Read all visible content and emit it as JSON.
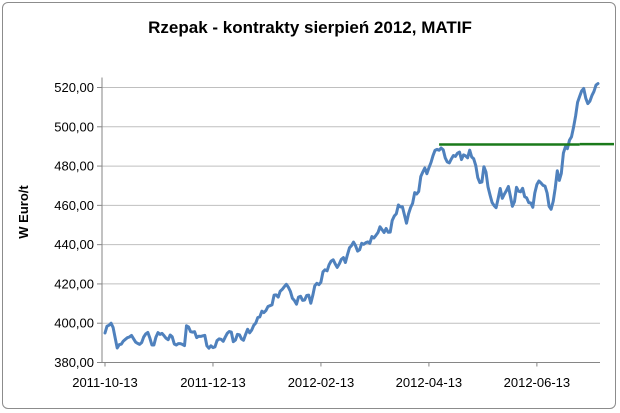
{
  "chart_data": {
    "type": "line",
    "title": "Rzepak - kontrakty sierpień 2012, MATIF",
    "xlabel": "",
    "ylabel": "W Euro/t",
    "ylim": [
      380,
      530
    ],
    "y_ticks": [
      380,
      400,
      420,
      440,
      460,
      480,
      500,
      520
    ],
    "y_tick_labels": [
      "380,00",
      "400,00",
      "420,00",
      "440,00",
      "460,00",
      "480,00",
      "500,00",
      "520,00"
    ],
    "x_tick_labels": [
      "2011-10-13",
      "2011-12-13",
      "2012-02-13",
      "2012-04-13",
      "2012-06-13"
    ],
    "grid": "horizontal",
    "colors": {
      "series": "#4f81bd",
      "reference": "#1a7a1a",
      "grid": "#bfbfbf",
      "axis": "#868686"
    },
    "series": [
      {
        "values": [
          395.0,
          398.5,
          399.0,
          400.0,
          397.8,
          392.4,
          387.4,
          389.1,
          389.3,
          390.9,
          391.8,
          392.6,
          393.0,
          393.8,
          392.1,
          390.4,
          389.7,
          389.2,
          390.2,
          393.0,
          394.5,
          395.3,
          392.5,
          388.9,
          388.9,
          392.9,
          395.2,
          394.3,
          394.8,
          393.6,
          392.3,
          391.6,
          394.0,
          393.1,
          389.4,
          388.9,
          389.6,
          389.6,
          389.2,
          388.6,
          398.7,
          398.1,
          395.7,
          395.5,
          395.7,
          392.7,
          393.4,
          393.3,
          393.6,
          393.8,
          388.5,
          387.3,
          388.5,
          387.6,
          388.0,
          391.1,
          392.0,
          391.8,
          390.8,
          392.9,
          394.8,
          395.8,
          395.5,
          390.6,
          391.4,
          394.3,
          394.1,
          392.0,
          391.3,
          394.3,
          396.9,
          395.1,
          396.5,
          398.9,
          400.1,
          402.9,
          403.2,
          406.1,
          405.4,
          406.4,
          408.5,
          408.9,
          409.3,
          414.3,
          414.4,
          413.3,
          416.3,
          417.2,
          418.6,
          419.8,
          418.4,
          416.2,
          412.7,
          411.5,
          409.7,
          413.3,
          413.7,
          411.6,
          411.8,
          414.1,
          414.3,
          410.2,
          414.2,
          419.1,
          420.3,
          419.6,
          420.9,
          426.2,
          427.2,
          426.7,
          429.8,
          431.6,
          432.3,
          430.2,
          428.4,
          430.2,
          432.5,
          433.4,
          430.9,
          434.8,
          438.4,
          439.5,
          441.3,
          439.4,
          436.7,
          437.4,
          440.7,
          440.2,
          441.0,
          441.4,
          440.7,
          444.1,
          443.4,
          444.7,
          446.2,
          449.1,
          447.6,
          446.2,
          448.2,
          446.3,
          446.4,
          452.3,
          454.6,
          455.7,
          460.2,
          459.2,
          459.3,
          455.0,
          450.9,
          455.6,
          458.9,
          461.0,
          466.5,
          465.8,
          467.1,
          474.7,
          477.0,
          479.0,
          476.1,
          479.1,
          481.8,
          485.3,
          488.0,
          488.5,
          488.1,
          489.2,
          488.3,
          484.2,
          482.1,
          481.6,
          483.6,
          485.4,
          484.9,
          486.5,
          487.1,
          483.3,
          485.7,
          485.2,
          484.2,
          488.1,
          484.6,
          483.7,
          480.2,
          474.1,
          471.6,
          471.9,
          479.7,
          476.9,
          469.4,
          465.3,
          461.4,
          459.9,
          458.8,
          463.6,
          468.6,
          463.6,
          465.7,
          467.4,
          469.6,
          464.6,
          459.5,
          461.9,
          469.2,
          467.2,
          466.9,
          468.7,
          464.4,
          463.8,
          461.4,
          461.2,
          459.0,
          466.3,
          470.6,
          472.4,
          471.4,
          470.2,
          469.8,
          466.3,
          459.5,
          458.0,
          462.0,
          468.7,
          477.6,
          472.7,
          476.2,
          486.6,
          489.8,
          488.9,
          493.2,
          494.9,
          499.9,
          505.5,
          512.5,
          515.5,
          518.3,
          519.5,
          514.5,
          511.8,
          513.1,
          515.9,
          517.9,
          521.2,
          522.0
        ]
      }
    ],
    "reference_line": {
      "segments": [
        {
          "from_index": 164,
          "to_index": 233,
          "value": 491
        },
        {
          "from_index": 233,
          "to_index": 273,
          "value": 491.2
        }
      ]
    }
  }
}
